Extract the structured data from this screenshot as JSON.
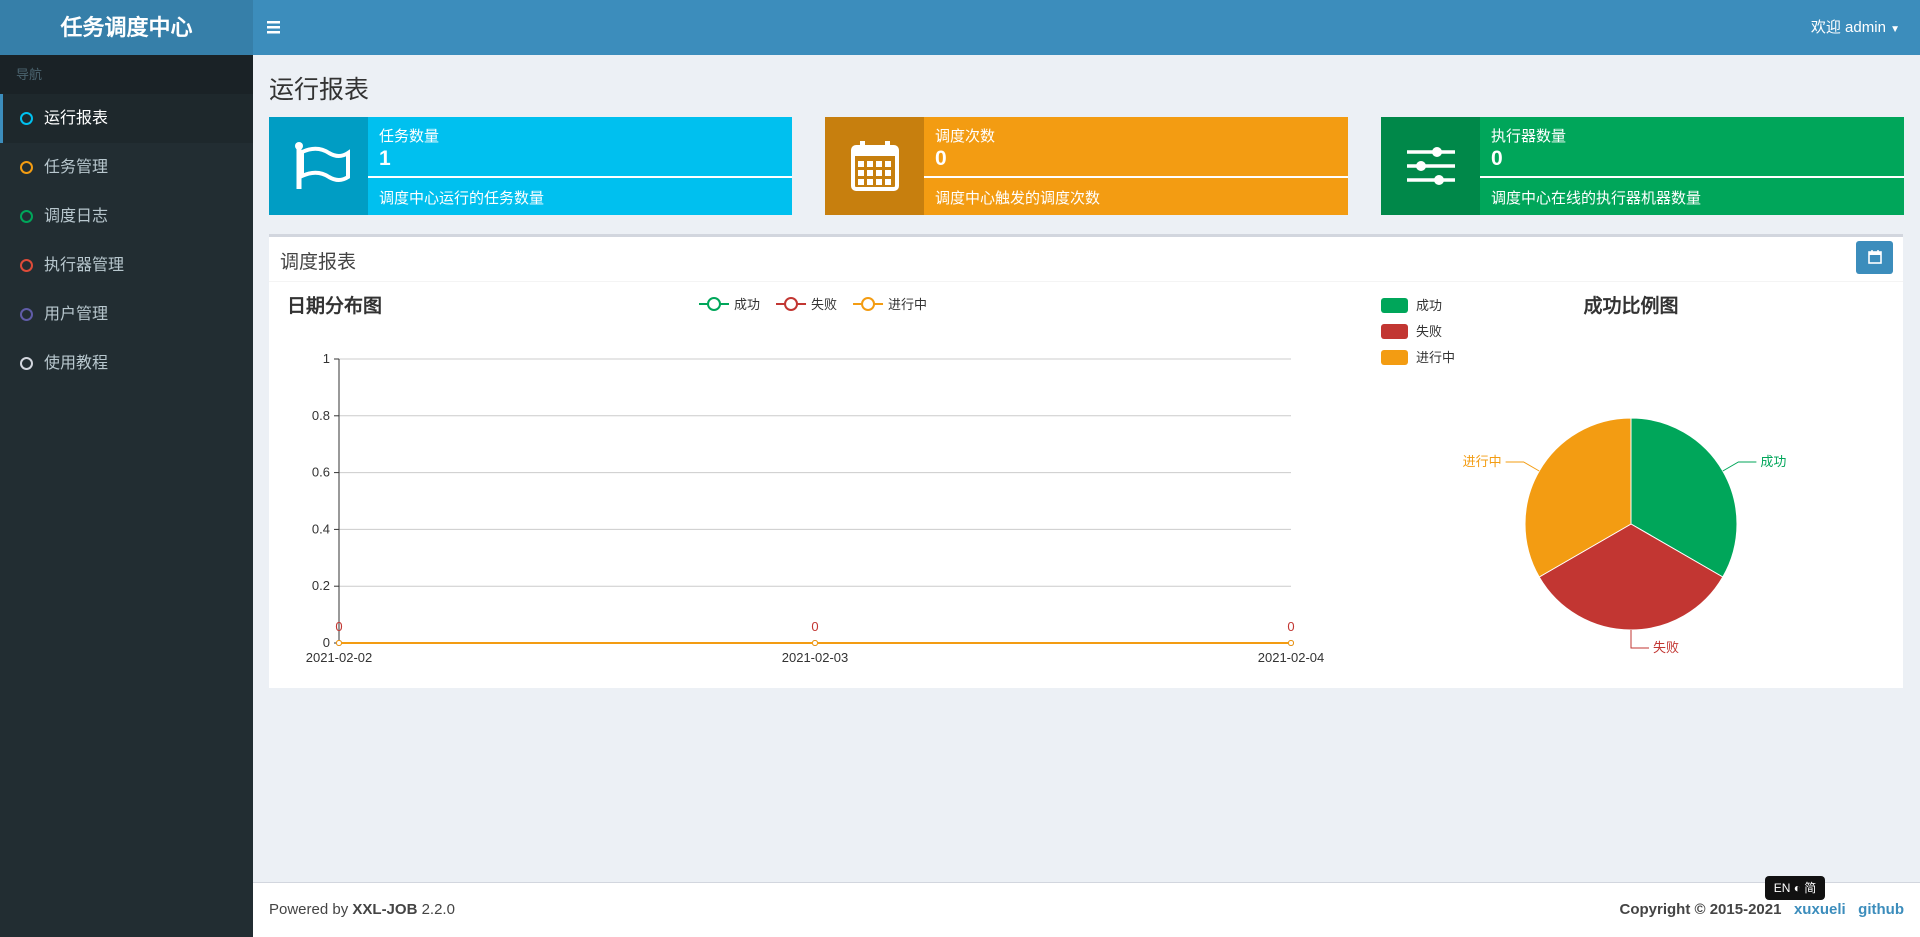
{
  "sidebar": {
    "logo": "任务调度中心",
    "nav_header": "导航",
    "menu": [
      {
        "label": "运行报表",
        "color": "#00c0ef"
      },
      {
        "label": "任务管理",
        "color": "#f39c12"
      },
      {
        "label": "调度日志",
        "color": "#00a65a"
      },
      {
        "label": "执行器管理",
        "color": "#dd4b39"
      },
      {
        "label": "用户管理",
        "color": "#605ca8"
      },
      {
        "label": "使用教程",
        "color": "#d2d6de"
      }
    ]
  },
  "header": {
    "user": "欢迎 admin"
  },
  "page_title": "运行报表",
  "info_boxes": [
    {
      "label": "任务数量",
      "value": 1,
      "description": "调度中心运行的任务数量",
      "color": "#00c0ef"
    },
    {
      "label": "调度次数",
      "value": 0,
      "description": "调度中心触发的调度次数",
      "color": "#f39c12"
    },
    {
      "label": "执行器数量",
      "value": 0,
      "description": "调度中心在线的执行器机器数量",
      "color": "#00a65a"
    }
  ],
  "panel": {
    "title": "调度报表"
  },
  "chart_data": [
    {
      "type": "line",
      "title": "日期分布图",
      "categories": [
        "2021-02-02",
        "2021-02-03",
        "2021-02-04"
      ],
      "series": [
        {
          "name": "成功",
          "color": "#00a65a",
          "values": [
            0,
            0,
            0
          ]
        },
        {
          "name": "失败",
          "color": "#c23632",
          "values": [
            0,
            0,
            0
          ],
          "show_labels": true
        },
        {
          "name": "进行中",
          "color": "#f39c12",
          "values": [
            0,
            0,
            0
          ]
        }
      ],
      "ylim": [
        0,
        1
      ],
      "yticks": [
        0,
        0.2,
        0.4,
        0.6,
        0.8,
        1
      ],
      "grid": true
    },
    {
      "type": "pie",
      "title": "成功比例图",
      "categories": [
        "成功",
        "失败",
        "进行中"
      ],
      "values": [
        33.3,
        33.3,
        33.3
      ],
      "colors": [
        "#00a65a",
        "#c23632",
        "#f39c12"
      ]
    }
  ],
  "footer": {
    "powered_by": "Powered by",
    "product": "XXL-JOB",
    "version": "2.2.0",
    "copyright": "Copyright © 2015-2021",
    "author": "xuxueli",
    "link": "github"
  },
  "lang_switch": {
    "left": "EN",
    "right": "简"
  }
}
